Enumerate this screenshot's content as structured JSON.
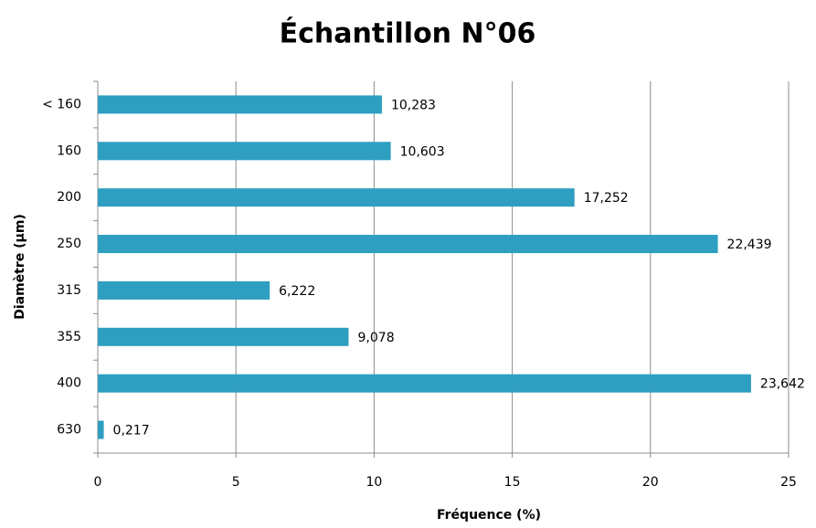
{
  "chart_data": {
    "type": "bar",
    "orientation": "horizontal",
    "title": "Échantillon N°06",
    "xlabel": "Fréquence (%)",
    "ylabel": "Diamètre (µm)",
    "categories": [
      "< 160",
      "160",
      "200",
      "250",
      "315",
      "355",
      "400",
      "630"
    ],
    "values": [
      10.283,
      10.603,
      17.252,
      22.439,
      6.222,
      9.078,
      23.642,
      0.217
    ],
    "value_labels": [
      "10,283",
      "10,603",
      "17,252",
      "22,439",
      "6,222",
      "9,078",
      "23,642",
      "0,217"
    ],
    "color": "#2e9fc1",
    "xlim": [
      0,
      25
    ],
    "xticks": [
      0,
      5,
      10,
      15,
      20,
      25
    ],
    "grid": true
  }
}
